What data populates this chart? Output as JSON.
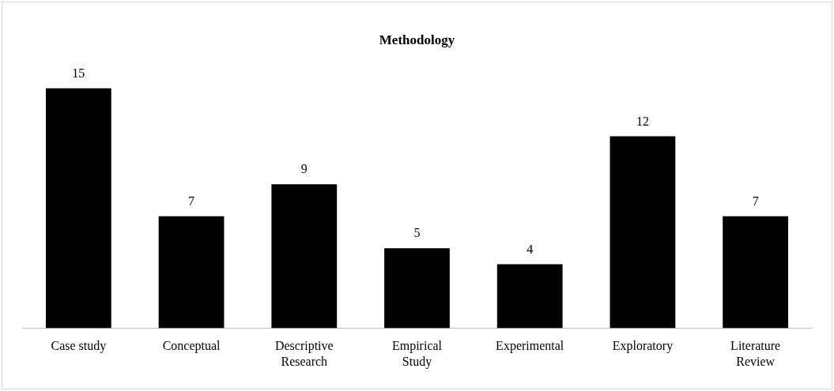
{
  "chart_data": {
    "type": "bar",
    "title": "Methodology",
    "categories": [
      "Case study",
      "Conceptual",
      "Descriptive Research",
      "Empirical Study",
      "Experimental",
      "Exploratory",
      "Literature Review"
    ],
    "values": [
      15,
      7,
      9,
      5,
      4,
      12,
      7
    ],
    "color": "#000000",
    "data_labels": true,
    "grid": false,
    "legend": false
  }
}
